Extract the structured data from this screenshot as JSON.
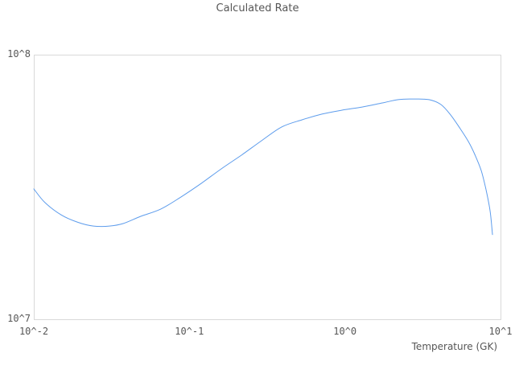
{
  "chart_data": {
    "type": "line",
    "title": "Calculated Rate",
    "xlabel": "Temperature (GK)",
    "ylabel": "",
    "x_scale": "log",
    "y_scale": "log",
    "xlim": [
      0.01,
      10
    ],
    "ylim": [
      10000000.0,
      100000000.0
    ],
    "grid": false,
    "legend": "none",
    "line_color": "#5d9cec",
    "x_ticks": [
      {
        "value": 0.01,
        "label": "10^-2"
      },
      {
        "value": 0.1,
        "label": "10^-1"
      },
      {
        "value": 1,
        "label": "10^0"
      },
      {
        "value": 10,
        "label": "10^1"
      }
    ],
    "y_ticks": [
      {
        "value": 10000000.0,
        "label": "10^7"
      },
      {
        "value": 100000000.0,
        "label": "10^8"
      }
    ],
    "series": [
      {
        "name": "calculated_rate",
        "x": [
          0.01,
          0.0118,
          0.015,
          0.019,
          0.0242,
          0.0306,
          0.0375,
          0.0487,
          0.0656,
          0.0884,
          0.119,
          0.16,
          0.216,
          0.291,
          0.392,
          0.528,
          0.711,
          0.957,
          1.29,
          1.74,
          2.2,
          2.8,
          3.47,
          4.14,
          4.78,
          5.51,
          6.21,
          6.83,
          7.51,
          8.07,
          8.57,
          8.88
        ],
        "y": [
          31100000.0,
          27600000.0,
          24800000.0,
          23300000.0,
          22500000.0,
          22500000.0,
          23000000.0,
          24500000.0,
          26100000.0,
          29000000.0,
          32600000.0,
          37000000.0,
          41700000.0,
          47300000.0,
          53300000.0,
          56700000.0,
          59600000.0,
          61700000.0,
          63400000.0,
          65700000.0,
          67600000.0,
          68000000.0,
          67600000.0,
          64800000.0,
          59200000.0,
          52500000.0,
          47000000.0,
          42000000.0,
          36500000.0,
          30900000.0,
          25700000.0,
          20900000.0
        ]
      }
    ]
  },
  "colors": {
    "line": "#5d9cec",
    "frame": "#d9d9d9",
    "text": "#565656",
    "background": "#ffffff"
  }
}
